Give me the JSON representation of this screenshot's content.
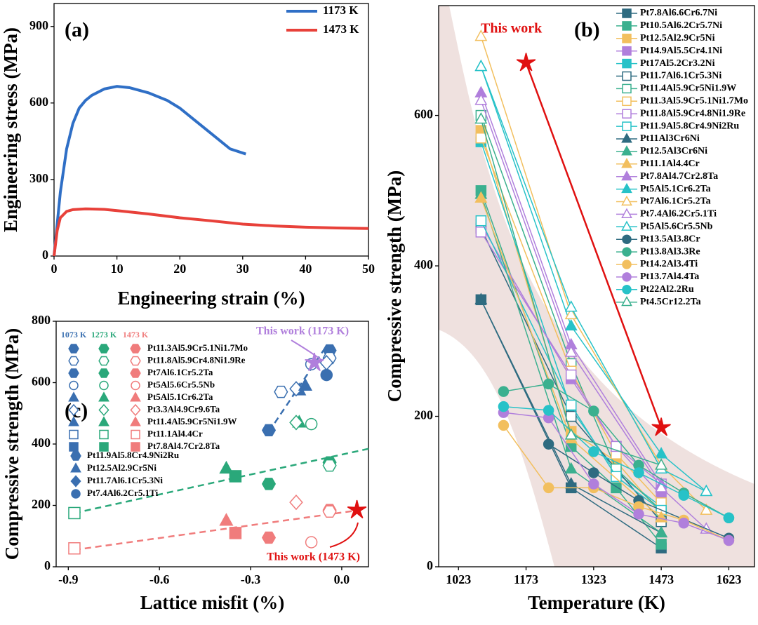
{
  "chart_data": [
    {
      "type": "line",
      "title": "(a)",
      "x_label": "Engineering strain (%)",
      "y_label": "Engineering stress (MPa)",
      "xlim": [
        0,
        50
      ],
      "ylim": [
        0,
        990
      ],
      "xticks": [
        0,
        10,
        20,
        30,
        40,
        50
      ],
      "yticks": [
        0,
        300,
        600,
        900
      ],
      "series": [
        {
          "name": "1173 K",
          "color": "#2f6fc6",
          "x": [
            0,
            1,
            2,
            3,
            4,
            5,
            6,
            8,
            10,
            12,
            15,
            18,
            20,
            22,
            25,
            28,
            30.5
          ],
          "values": [
            0,
            250,
            420,
            520,
            580,
            610,
            630,
            655,
            665,
            660,
            640,
            610,
            580,
            540,
            480,
            420,
            400
          ]
        },
        {
          "name": "1473 K",
          "color": "#e8413a",
          "x": [
            0,
            0.5,
            1,
            2,
            3,
            5,
            8,
            10,
            15,
            20,
            25,
            30,
            35,
            40,
            45,
            50
          ],
          "values": [
            0,
            100,
            150,
            175,
            182,
            185,
            183,
            178,
            165,
            150,
            138,
            125,
            118,
            113,
            110,
            108
          ]
        }
      ]
    },
    {
      "type": "line",
      "title": "(b)",
      "x_label": "Temperature (K)",
      "y_label": "Compressive strength (MPa)",
      "xlim": [
        979,
        1680
      ],
      "ylim": [
        0,
        746
      ],
      "xticks": [
        1023,
        1173,
        1323,
        1473,
        1623
      ],
      "yticks": [
        0,
        200,
        400,
        600
      ],
      "this_work": {
        "label": "This work",
        "color": "#e01010",
        "x": [
          1173,
          1473
        ],
        "values": [
          670,
          185
        ]
      },
      "series": [
        {
          "name": "Pt7.8Al6.6Cr6.7Ni",
          "color": "#2e6b80",
          "marker": "square",
          "filled": true,
          "x": [
            1073,
            1273,
            1473
          ],
          "values": [
            355,
            105,
            25
          ]
        },
        {
          "name": "Pt10.5Al6.2Cr5.7Ni",
          "color": "#3bb08f",
          "marker": "square",
          "filled": true,
          "x": [
            1073,
            1273,
            1373,
            1473
          ],
          "values": [
            500,
            160,
            105,
            30
          ]
        },
        {
          "name": "Pt12.5Al2.9Cr5Ni",
          "color": "#f2bf5e",
          "marker": "square",
          "filled": true,
          "x": [
            1073,
            1273,
            1373,
            1473
          ],
          "values": [
            580,
            180,
            140,
            70
          ]
        },
        {
          "name": "Pt14.9Al5.5Cr4.1Ni",
          "color": "#b07fdc",
          "marker": "square",
          "filled": true,
          "x": [
            1073,
            1273,
            1373,
            1473
          ],
          "values": [
            455,
            250,
            160,
            95
          ]
        },
        {
          "name": "Pt17Al5.2Cr3.2Ni",
          "color": "#27c2c8",
          "marker": "square",
          "filled": true,
          "x": [
            1073,
            1273,
            1373,
            1473
          ],
          "values": [
            565,
            210,
            125,
            80
          ]
        },
        {
          "name": "Pt11.7Al6.1Cr5.3Ni",
          "color": "#2e6b80",
          "marker": "square",
          "filled": false,
          "x": [
            1073,
            1273,
            1473
          ],
          "values": [
            450,
            200,
            60
          ]
        },
        {
          "name": "Pt11.4Al5.9Cr5Ni1.9W",
          "color": "#3bb08f",
          "marker": "square",
          "filled": false,
          "x": [
            1073,
            1273,
            1373,
            1473
          ],
          "values": [
            600,
            270,
            130,
            75
          ]
        },
        {
          "name": "Pt11.3Al5.9Cr5.1Ni1.7Mo",
          "color": "#f2bf5e",
          "marker": "square",
          "filled": false,
          "x": [
            1073,
            1273,
            1373,
            1473
          ],
          "values": [
            570,
            260,
            150,
            85
          ]
        },
        {
          "name": "Pt11.8Al5.9Cr4.8Ni1.9Re",
          "color": "#b07fdc",
          "marker": "square",
          "filled": false,
          "x": [
            1073,
            1273,
            1373,
            1473
          ],
          "values": [
            445,
            255,
            160,
            110
          ]
        },
        {
          "name": "Pt11.9Al5.8Cr4.9Ni2Ru",
          "color": "#27c2c8",
          "marker": "square",
          "filled": false,
          "x": [
            1073,
            1273,
            1373,
            1473
          ],
          "values": [
            460,
            215,
            120,
            75
          ]
        },
        {
          "name": "Pt11Al3Cr6Ni",
          "color": "#2e6b80",
          "marker": "triangle",
          "filled": true,
          "x": [
            1073,
            1273,
            1473
          ],
          "values": [
            355,
            110,
            45
          ]
        },
        {
          "name": "Pt12.5Al3Cr6Ni",
          "color": "#3bb08f",
          "marker": "triangle",
          "filled": true,
          "x": [
            1073,
            1273,
            1473
          ],
          "values": [
            495,
            130,
            45
          ]
        },
        {
          "name": "Pt11.1Al4.4Cr",
          "color": "#f2bf5e",
          "marker": "triangle",
          "filled": true,
          "x": [
            1073,
            1273,
            1473
          ],
          "values": [
            490,
            170,
            65
          ]
        },
        {
          "name": "Pt7.8Al4.7Cr2.8Ta",
          "color": "#b07fdc",
          "marker": "triangle",
          "filled": true,
          "x": [
            1073,
            1273,
            1473
          ],
          "values": [
            630,
            295,
            110
          ]
        },
        {
          "name": "Pt5Al5.1Cr6.2Ta",
          "color": "#27c2c8",
          "marker": "triangle",
          "filled": true,
          "x": [
            1073,
            1273,
            1473,
            1573
          ],
          "values": [
            665,
            320,
            150,
            100
          ]
        },
        {
          "name": "Pt7Al6.1Cr5.2Ta",
          "color": "#f2bf5e",
          "marker": "triangle",
          "filled": false,
          "x": [
            1073,
            1273,
            1473,
            1573
          ],
          "values": [
            705,
            335,
            135,
            75
          ]
        },
        {
          "name": "Pt7.4Al6.2Cr5.1Ti",
          "color": "#b07fdc",
          "marker": "triangle",
          "filled": false,
          "x": [
            1073,
            1273,
            1473,
            1573
          ],
          "values": [
            620,
            285,
            105,
            50
          ]
        },
        {
          "name": "Pt5Al5.6Cr5.5Nb",
          "color": "#27c2c8",
          "marker": "triangle",
          "filled": false,
          "x": [
            1073,
            1273,
            1473,
            1573
          ],
          "values": [
            665,
            345,
            130,
            100
          ]
        },
        {
          "name": "Pt13.5Al3.8Cr",
          "color": "#2e6b80",
          "marker": "circle",
          "filled": true,
          "x": [
            1223,
            1323,
            1423,
            1623
          ],
          "values": [
            163,
            125,
            88,
            38
          ]
        },
        {
          "name": "Pt13.8Al3.3Re",
          "color": "#3bb08f",
          "marker": "circle",
          "filled": true,
          "x": [
            1123,
            1223,
            1323,
            1423,
            1523,
            1623
          ],
          "values": [
            233,
            243,
            207,
            135,
            98,
            65
          ]
        },
        {
          "name": "Pt14.2Al3.4Ti",
          "color": "#f2bf5e",
          "marker": "circle",
          "filled": true,
          "x": [
            1123,
            1223,
            1323,
            1423,
            1523,
            1623
          ],
          "values": [
            188,
            105,
            105,
            80,
            62,
            35
          ]
        },
        {
          "name": "Pt13.7Al4.4Ta",
          "color": "#b07fdc",
          "marker": "circle",
          "filled": true,
          "x": [
            1123,
            1223,
            1323,
            1423,
            1523,
            1623
          ],
          "values": [
            205,
            198,
            110,
            70,
            58,
            35
          ]
        },
        {
          "name": "Pt22Al2.2Ru",
          "color": "#27c2c8",
          "marker": "circle",
          "filled": true,
          "x": [
            1123,
            1223,
            1323,
            1423,
            1523,
            1623
          ],
          "values": [
            213,
            208,
            153,
            125,
            95,
            65
          ]
        },
        {
          "name": "Pt4.5Cr12.2Ta",
          "color": "#3bb08f",
          "marker": "triangle",
          "filled": false,
          "x": [
            1073,
            1273,
            1473
          ],
          "values": [
            595,
            175,
            135
          ]
        }
      ]
    },
    {
      "type": "scatter",
      "title": "(c)",
      "x_label": "Lattice misfit (%)",
      "y_label": "Compressive strength (MPa)",
      "xlim": [
        -0.94,
        0.088
      ],
      "ylim": [
        0,
        800
      ],
      "xticks": [
        -0.9,
        -0.6,
        -0.3,
        {
          "value": 0,
          "label": "0.0"
        }
      ],
      "yticks": [
        0,
        200,
        400,
        600,
        800
      ],
      "temperatures": [
        {
          "name": "1073 K",
          "color": "#3a6fb0"
        },
        {
          "name": "1273 K",
          "color": "#2aa87a"
        },
        {
          "name": "1473 K",
          "color": "#f07c7c"
        }
      ],
      "series": [
        {
          "name": "Pt11.3Al5.9Cr5.1Ni1.7Mo",
          "shape": "hexagon",
          "x": -0.04,
          "values": [
            705,
            340,
            185
          ]
        },
        {
          "name": "Pt11.8Al5.9Cr4.8Ni1.9Re",
          "shape": "hexagon",
          "x": -0.04,
          "values": [
            680,
            330,
            180
          ]
        },
        {
          "name": "Pt7Al6.1Cr5.2Ta",
          "shape": "hexagon",
          "x": -0.24,
          "values": [
            445,
            270,
            95
          ]
        },
        {
          "name": "Pt5Al5.6Cr5.5Nb",
          "shape": "circle",
          "x": -0.1,
          "values": [
            660,
            465,
            80
          ]
        },
        {
          "name": "Pt5Al5.1Cr6.2Ta",
          "shape": "triangle",
          "x": -0.14,
          "values": [
            575,
            470,
            null
          ]
        },
        {
          "name": "Pt3.3Al4.9Cr9.6Ta",
          "shape": "diamond",
          "x": -0.15,
          "values": [
            580,
            470,
            210
          ]
        },
        {
          "name": "Pt11.4Al5.9Cr5Ni1.9W",
          "shape": "triangle",
          "x": -0.38,
          "values": [
            null,
            320,
            150
          ]
        },
        {
          "name": "Pt11.1Al4.4Cr",
          "shape": "square",
          "x": -0.88,
          "values": [
            null,
            175,
            60
          ]
        },
        {
          "name": "Pt7.8Al4.7Cr2.8Ta",
          "shape": "square",
          "x": -0.35,
          "values": [
            null,
            295,
            110
          ]
        },
        {
          "name": "Pt11.9Al5.8Cr4.9Ni2Ru",
          "shape": "hexagon",
          "x": -0.2,
          "values": [
            570,
            null,
            null
          ]
        },
        {
          "name": "Pt12.5Al2.9Cr5Ni",
          "shape": "triangle",
          "x": -0.12,
          "values": [
            590,
            null,
            null
          ]
        },
        {
          "name": "Pt11.7Al6.1Cr5.3Ni",
          "shape": "diamond",
          "x": -0.05,
          "values": [
            665,
            null,
            null
          ]
        },
        {
          "name": "Pt7.4Al6.2Cr5.1Ti",
          "shape": "circle",
          "x": -0.05,
          "values": [
            625,
            null,
            null
          ]
        }
      ],
      "fits": [
        {
          "color": "#3a6fb0",
          "x": [
            -0.24,
            -0.05
          ],
          "values": [
            440,
            720
          ]
        },
        {
          "color": "#2aa87a",
          "x": [
            -0.88,
            0.09
          ],
          "values": [
            175,
            385
          ]
        },
        {
          "color": "#f07c7c",
          "x": [
            -0.88,
            0.06
          ],
          "values": [
            55,
            185
          ]
        }
      ],
      "this_work": [
        {
          "label": "This work (1173 K)",
          "color": "#b07fdc",
          "x": -0.09,
          "value": 665
        },
        {
          "label": "This work (1473 K)",
          "color": "#e01010",
          "x": 0.05,
          "value": 185
        }
      ]
    }
  ]
}
